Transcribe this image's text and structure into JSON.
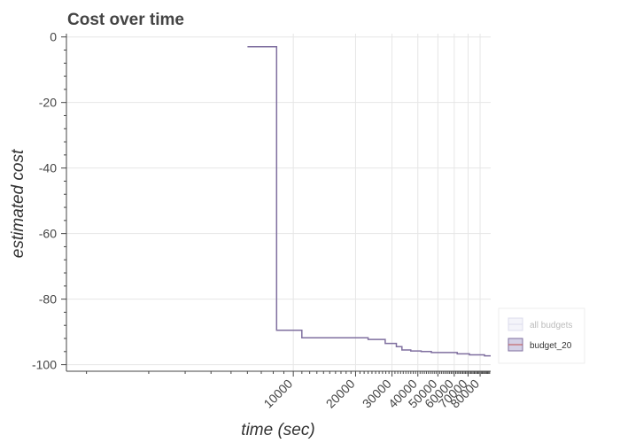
{
  "chart_data": {
    "type": "line",
    "title": "Cost over time",
    "xlabel": "time (sec)",
    "ylabel": "estimated cost",
    "x_scale": "log",
    "xlim": [
      800,
      90000
    ],
    "ylim": [
      -102,
      1
    ],
    "grid": true,
    "x_tick_labels": [
      "10000",
      "20000",
      "30000",
      "40000",
      "50000",
      "60000",
      "70000",
      "80000"
    ],
    "x_tick_values": [
      10000,
      20000,
      30000,
      40000,
      50000,
      60000,
      70000,
      80000
    ],
    "y_tick_labels": [
      "0",
      "-20",
      "-40",
      "-60",
      "-80",
      "-100"
    ],
    "y_tick_values": [
      0,
      -20,
      -40,
      -60,
      -80,
      -100
    ],
    "legend": {
      "placement": "bottom-right",
      "entries": [
        {
          "label": "all budgets",
          "color": "#c8c8e8",
          "muted": true
        },
        {
          "label": "budget_20",
          "color": "#7f6f9f",
          "muted": false
        }
      ]
    },
    "series": [
      {
        "name": "budget_20",
        "color": "#7f6f9f",
        "step": true,
        "x": [
          6000,
          8300,
          8300,
          11000,
          11000,
          23000,
          23000,
          27800,
          27800,
          31500,
          31500,
          33500,
          33500,
          37000,
          37000,
          41500,
          41500,
          46500,
          46500,
          62000,
          62000,
          71000,
          71000,
          84000,
          84000,
          90000
        ],
        "y": [
          -3,
          -3,
          -89.5,
          -89.5,
          -91.8,
          -91.8,
          -92.3,
          -92.3,
          -93.5,
          -93.5,
          -94.5,
          -94.5,
          -95.5,
          -95.5,
          -95.8,
          -95.8,
          -96,
          -96,
          -96.3,
          -96.3,
          -96.7,
          -96.7,
          -97,
          -97,
          -97.3,
          -97.3
        ]
      }
    ]
  }
}
